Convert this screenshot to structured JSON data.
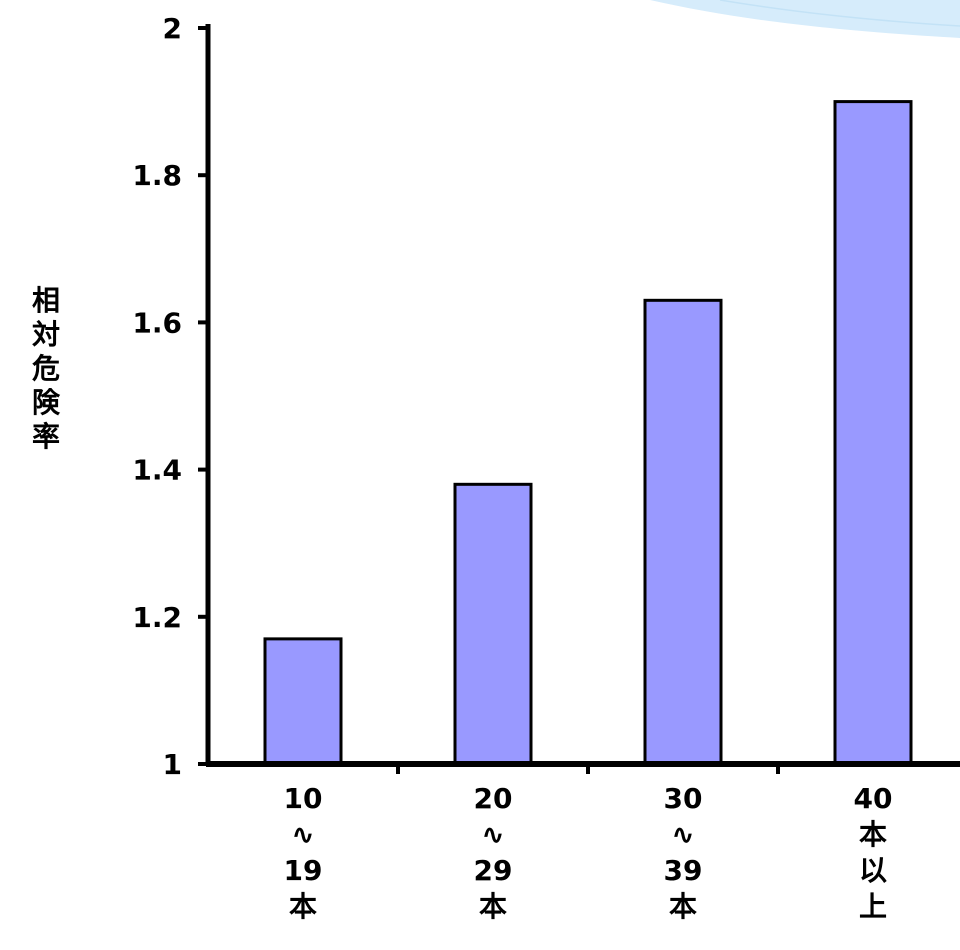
{
  "chart_data": {
    "type": "bar",
    "categories": [
      [
        "10",
        "∿",
        "19",
        "本"
      ],
      [
        "20",
        "∿",
        "29",
        "本"
      ],
      [
        "30",
        "∿",
        "39",
        "本"
      ],
      [
        "40",
        "本",
        "以",
        "上"
      ]
    ],
    "values": [
      1.17,
      1.38,
      1.63,
      1.9
    ],
    "ylabel": "相対危険率",
    "xlabel": "",
    "title": "",
    "ylim": [
      1,
      2
    ],
    "yticks": [
      "1",
      "1.2",
      "1.4",
      "1.6",
      "1.8",
      "2"
    ],
    "bar_color": "#9999ff",
    "bar_stroke": "#000000",
    "grid": false
  },
  "decoration": {
    "accent_color": "#d6ecfb"
  }
}
